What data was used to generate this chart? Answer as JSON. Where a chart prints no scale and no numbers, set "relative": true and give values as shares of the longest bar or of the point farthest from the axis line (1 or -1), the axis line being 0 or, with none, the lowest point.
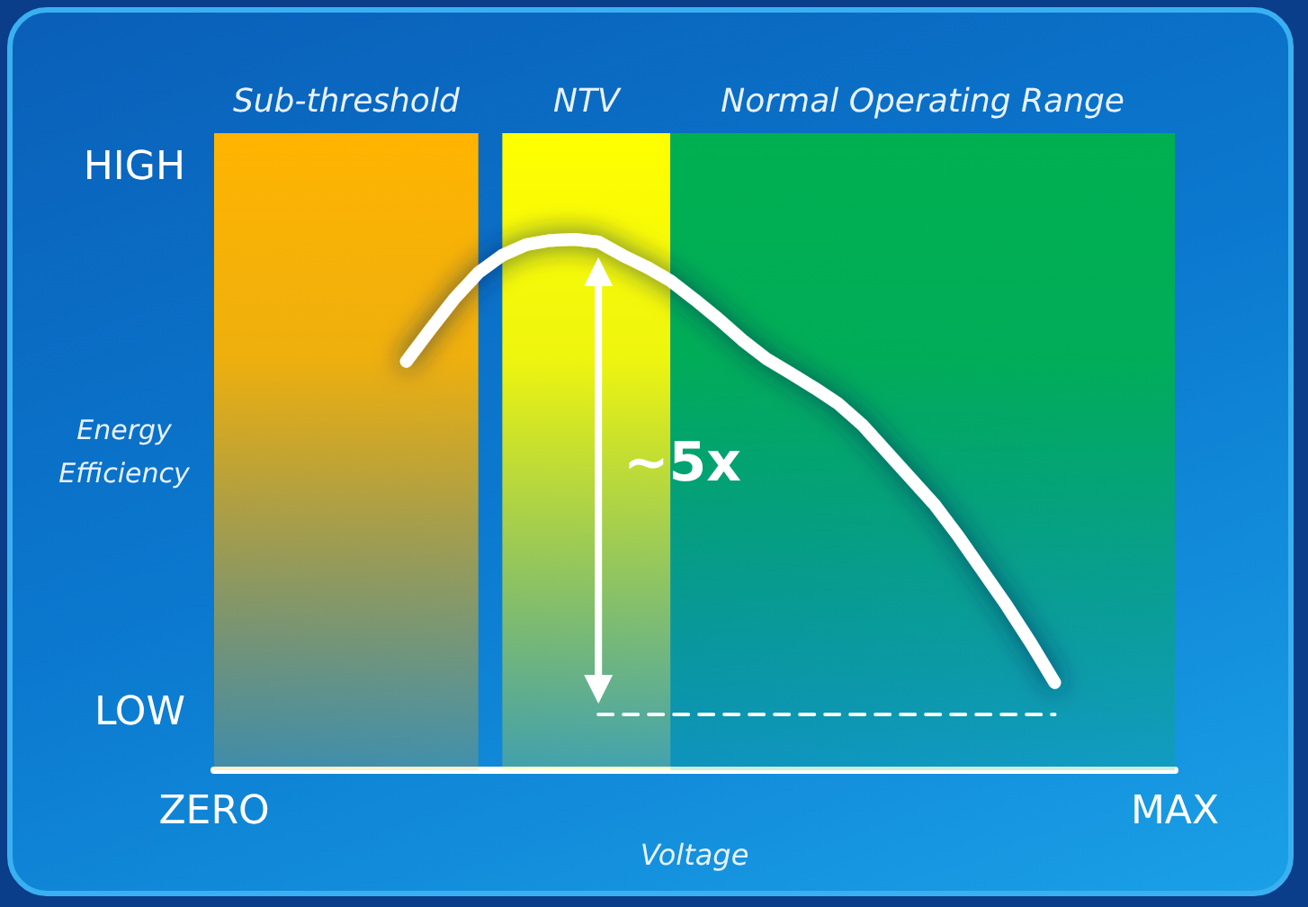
{
  "chart_data": {
    "type": "line",
    "relative": true,
    "xlabel": "Voltage",
    "ylabel": "Energy Efficiency",
    "grid": false,
    "marker": "none",
    "categories": [
      "ZERO",
      null,
      null,
      null,
      null,
      null,
      null,
      null,
      null,
      null,
      null,
      null,
      null,
      null,
      null,
      null,
      null,
      null,
      null,
      null,
      null,
      null,
      null,
      null,
      null,
      null,
      null,
      null,
      null,
      null,
      null,
      null,
      null,
      null,
      null,
      null,
      null,
      null,
      null,
      null,
      "MAX"
    ],
    "series": [
      {
        "color": "#ffffff",
        "line_style": "solid",
        "values": [
          null,
          null,
          null,
          null,
          null,
          null,
          null,
          null,
          0.77,
          0.83,
          0.888,
          0.937,
          0.97,
          0.99,
          0.998,
          1,
          0.995,
          0.97,
          0.948,
          0.922,
          0.887,
          0.85,
          0.81,
          0.775,
          0.748,
          0.72,
          0.69,
          0.65,
          0.6,
          0.55,
          0.5,
          0.44,
          0.375,
          0.31,
          0.24,
          0.165,
          null,
          null,
          null,
          null,
          null
        ]
      },
      {
        "color": "#ffffff",
        "line_style": "dashed",
        "values": [
          null,
          null,
          null,
          null,
          null,
          null,
          null,
          null,
          null,
          null,
          null,
          null,
          null,
          null,
          null,
          null,
          0.105,
          0.105,
          0.105,
          0.105,
          0.105,
          0.105,
          0.105,
          0.105,
          0.105,
          0.105,
          0.105,
          0.105,
          0.105,
          0.105,
          0.105,
          0.105,
          0.105,
          0.105,
          0.105,
          0.105,
          null,
          null,
          null,
          null,
          null
        ]
      }
    ],
    "annotations": [
      "Sub-threshold",
      "NTV",
      "Normal Operating Range",
      "HIGH",
      "LOW",
      "~5x"
    ]
  }
}
